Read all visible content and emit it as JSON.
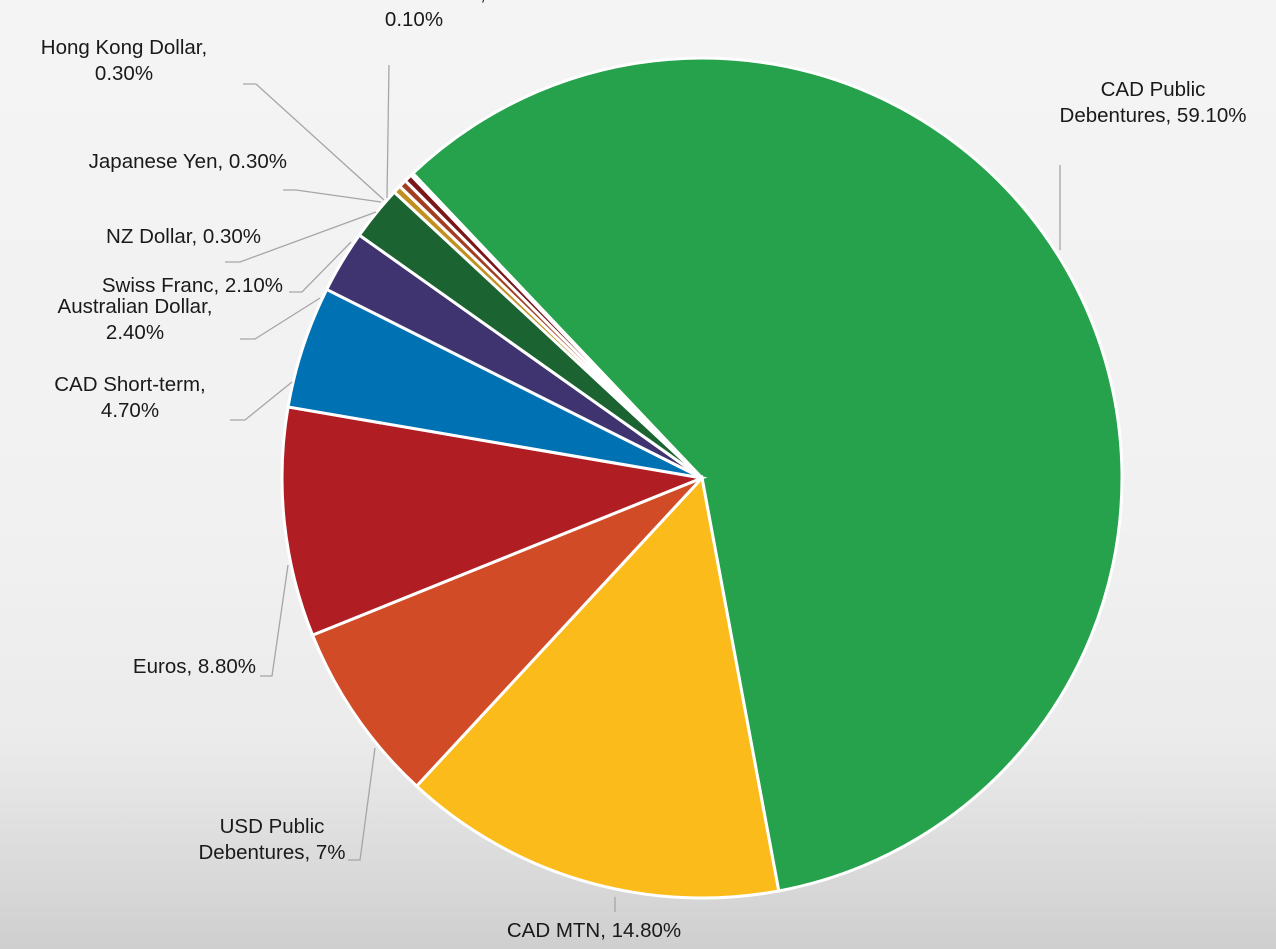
{
  "chart_data": {
    "type": "pie",
    "slices": [
      {
        "label": "CAD Public Debentures",
        "value": 59.1,
        "display": [
          "CAD Public",
          "Debentures, 59.10%"
        ],
        "color": "#25a24b"
      },
      {
        "label": "CAD MTN",
        "value": 14.8,
        "display": [
          "CAD MTN, 14.80%"
        ],
        "color": "#fbbc1b"
      },
      {
        "label": "USD Public Debentures",
        "value": 7,
        "display": [
          "USD Public",
          "Debentures, 7%"
        ],
        "color": "#d24b27"
      },
      {
        "label": "Euros",
        "value": 8.8,
        "display": [
          "Euros, 8.80%"
        ],
        "color": "#b01e23"
      },
      {
        "label": "CAD Short-term",
        "value": 4.7,
        "display": [
          "CAD Short-term,",
          "4.70%"
        ],
        "color": "#0071b3"
      },
      {
        "label": "Australian Dollar",
        "value": 2.4,
        "display": [
          "Australian Dollar,",
          "2.40%"
        ],
        "color": "#3f3470"
      },
      {
        "label": "Swiss Franc",
        "value": 2.1,
        "display": [
          "Swiss Franc, 2.10%"
        ],
        "color": "#1b6331"
      },
      {
        "label": "NZ Dollar",
        "value": 0.3,
        "display": [
          "NZ Dollar, 0.30%"
        ],
        "color": "#c1901e"
      },
      {
        "label": "Japanese Yen",
        "value": 0.3,
        "display": [
          "Japanese Yen, 0.30%"
        ],
        "color": "#a23d22"
      },
      {
        "label": "Hong Kong Dollar",
        "value": 0.3,
        "display": [
          "Hong Kong Dollar,",
          "0.30%"
        ],
        "color": "#7a171b"
      },
      {
        "label": "Swedish Krona",
        "value": 0.1,
        "display": [
          "Swedish Krona,",
          "0.10%"
        ],
        "color": "#00568a"
      }
    ]
  }
}
